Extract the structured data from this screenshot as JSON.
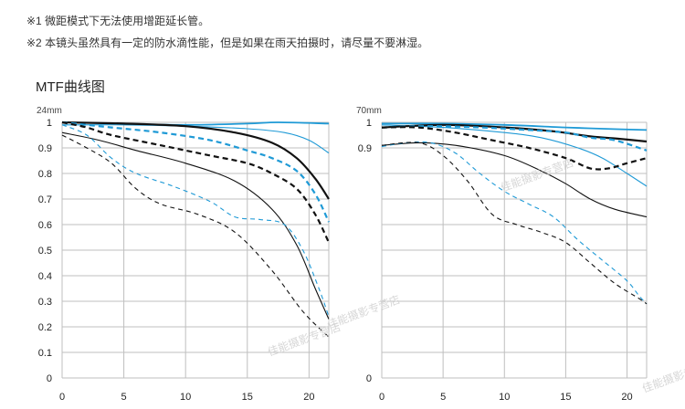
{
  "notes": [
    "※1 微距模式下无法使用增距延长管。",
    "※2 本镜头虽然具有一定的防水滴性能，但是如果在雨天拍摄时，请尽量不要淋湿。"
  ],
  "section_title": "MTF曲线图",
  "watermark": "佳能摄影专营店",
  "colors": {
    "black": "#111111",
    "blue": "#1f9ad6",
    "grid": "#bfbfbf"
  },
  "chart_data": [
    {
      "type": "line",
      "title": "24mm",
      "xlabel": "",
      "ylabel": "",
      "xlim": [
        0,
        21.6
      ],
      "ylim": [
        0,
        1
      ],
      "x_ticks": [
        0,
        5,
        10,
        15,
        20
      ],
      "y_ticks": [
        0,
        0.1,
        0.2,
        0.3,
        0.4,
        0.5,
        0.6,
        0.7,
        0.8,
        0.9,
        1
      ],
      "y_tick_labels": [
        "0",
        "0.1",
        "0.2",
        "0.3",
        "0.4",
        "0.5",
        "0.6",
        "0.7",
        "0.8",
        "0.9",
        "1"
      ],
      "grid": true,
      "series": [
        {
          "color": "blue",
          "style": "solid",
          "width": 1.8,
          "points": [
            [
              0,
              1.0
            ],
            [
              5,
              0.995
            ],
            [
              10,
              0.99
            ],
            [
              15,
              0.995
            ],
            [
              17.5,
              1.0
            ],
            [
              21.6,
              0.995
            ]
          ]
        },
        {
          "color": "blue",
          "style": "solid",
          "width": 1.1,
          "points": [
            [
              0,
              0.99
            ],
            [
              5,
              0.99
            ],
            [
              10,
              0.985
            ],
            [
              15,
              0.975
            ],
            [
              18,
              0.96
            ],
            [
              20,
              0.93
            ],
            [
              21.6,
              0.88
            ]
          ]
        },
        {
          "color": "black",
          "style": "solid",
          "width": 2.2,
          "points": [
            [
              0,
              1.0
            ],
            [
              5,
              0.995
            ],
            [
              10,
              0.985
            ],
            [
              14,
              0.96
            ],
            [
              17,
              0.92
            ],
            [
              19,
              0.86
            ],
            [
              20.5,
              0.78
            ],
            [
              21.6,
              0.7
            ]
          ]
        },
        {
          "color": "black",
          "style": "solid",
          "width": 1.1,
          "points": [
            [
              0,
              0.96
            ],
            [
              3,
              0.93
            ],
            [
              6,
              0.89
            ],
            [
              10,
              0.84
            ],
            [
              14,
              0.77
            ],
            [
              17,
              0.66
            ],
            [
              19,
              0.52
            ],
            [
              20.5,
              0.35
            ],
            [
              21.6,
              0.23
            ]
          ]
        },
        {
          "color": "blue",
          "style": "dashed",
          "width": 2.2,
          "points": [
            [
              0,
              1.0
            ],
            [
              4,
              0.98
            ],
            [
              8,
              0.96
            ],
            [
              12,
              0.93
            ],
            [
              15,
              0.89
            ],
            [
              17,
              0.86
            ],
            [
              19,
              0.81
            ],
            [
              20.5,
              0.72
            ],
            [
              21.6,
              0.61
            ]
          ]
        },
        {
          "color": "black",
          "style": "dashed",
          "width": 2.2,
          "points": [
            [
              0,
              1.0
            ],
            [
              2,
              0.98
            ],
            [
              4,
              0.95
            ],
            [
              8,
              0.91
            ],
            [
              12,
              0.87
            ],
            [
              15,
              0.84
            ],
            [
              17,
              0.8
            ],
            [
              19,
              0.74
            ],
            [
              20.5,
              0.64
            ],
            [
              21.6,
              0.53
            ]
          ]
        },
        {
          "color": "blue",
          "style": "dashed",
          "width": 1.1,
          "points": [
            [
              0,
              0.99
            ],
            [
              2,
              0.95
            ],
            [
              4,
              0.86
            ],
            [
              6,
              0.8
            ],
            [
              9,
              0.75
            ],
            [
              12,
              0.69
            ],
            [
              14,
              0.63
            ],
            [
              16,
              0.62
            ],
            [
              18,
              0.6
            ],
            [
              19.5,
              0.5
            ],
            [
              20.8,
              0.35
            ],
            [
              21.6,
              0.24
            ]
          ]
        },
        {
          "color": "black",
          "style": "dashed",
          "width": 1.1,
          "points": [
            [
              0,
              0.95
            ],
            [
              2,
              0.9
            ],
            [
              4,
              0.84
            ],
            [
              6,
              0.74
            ],
            [
              8,
              0.68
            ],
            [
              11,
              0.64
            ],
            [
              14,
              0.57
            ],
            [
              17,
              0.42
            ],
            [
              19.5,
              0.26
            ],
            [
              21.6,
              0.16
            ]
          ]
        }
      ]
    },
    {
      "type": "line",
      "title": "70mm",
      "xlabel": "",
      "ylabel": "",
      "xlim": [
        0,
        21.6
      ],
      "ylim": [
        0,
        1
      ],
      "x_ticks": [
        0,
        5,
        10,
        15,
        20
      ],
      "y_ticks": [
        0,
        0.1,
        0.2,
        0.3,
        0.4,
        0.5,
        0.6,
        0.7,
        0.8,
        0.9,
        1
      ],
      "y_tick_labels": [
        "0",
        "",
        "",
        "",
        "",
        "",
        "",
        "",
        "",
        "0.9",
        "1"
      ],
      "grid": true,
      "series": [
        {
          "color": "blue",
          "style": "solid",
          "width": 1.8,
          "points": [
            [
              0,
              0.995
            ],
            [
              5,
              0.995
            ],
            [
              10,
              0.99
            ],
            [
              15,
              0.98
            ],
            [
              18,
              0.975
            ],
            [
              21.6,
              0.97
            ]
          ]
        },
        {
          "color": "blue",
          "style": "solid",
          "width": 1.1,
          "points": [
            [
              0,
              0.99
            ],
            [
              5,
              0.98
            ],
            [
              10,
              0.96
            ],
            [
              13,
              0.94
            ],
            [
              16,
              0.9
            ],
            [
              18,
              0.86
            ],
            [
              20,
              0.8
            ],
            [
              21.6,
              0.75
            ]
          ]
        },
        {
          "color": "black",
          "style": "solid",
          "width": 2.2,
          "points": [
            [
              0,
              0.98
            ],
            [
              5,
              0.99
            ],
            [
              10,
              0.98
            ],
            [
              14,
              0.965
            ],
            [
              17,
              0.945
            ],
            [
              19.5,
              0.935
            ],
            [
              21.6,
              0.925
            ]
          ]
        },
        {
          "color": "black",
          "style": "solid",
          "width": 1.1,
          "points": [
            [
              0,
              0.91
            ],
            [
              3,
              0.92
            ],
            [
              6,
              0.91
            ],
            [
              10,
              0.87
            ],
            [
              13,
              0.81
            ],
            [
              15,
              0.76
            ],
            [
              17,
              0.7
            ],
            [
              19,
              0.66
            ],
            [
              21.6,
              0.63
            ]
          ]
        },
        {
          "color": "blue",
          "style": "dashed",
          "width": 2.2,
          "points": [
            [
              0,
              0.98
            ],
            [
              4,
              0.985
            ],
            [
              8,
              0.98
            ],
            [
              12,
              0.97
            ],
            [
              15,
              0.96
            ],
            [
              17,
              0.94
            ],
            [
              19,
              0.93
            ],
            [
              21.6,
              0.89
            ]
          ]
        },
        {
          "color": "black",
          "style": "dashed",
          "width": 2.2,
          "points": [
            [
              0,
              0.98
            ],
            [
              3,
              0.98
            ],
            [
              6,
              0.96
            ],
            [
              9,
              0.93
            ],
            [
              12,
              0.9
            ],
            [
              15,
              0.86
            ],
            [
              17,
              0.82
            ],
            [
              18.5,
              0.82
            ],
            [
              20,
              0.84
            ],
            [
              21.6,
              0.86
            ]
          ]
        },
        {
          "color": "blue",
          "style": "dashed",
          "width": 1.1,
          "points": [
            [
              0,
              0.905
            ],
            [
              2,
              0.92
            ],
            [
              4,
              0.92
            ],
            [
              6,
              0.88
            ],
            [
              8,
              0.8
            ],
            [
              10,
              0.73
            ],
            [
              12,
              0.68
            ],
            [
              14,
              0.63
            ],
            [
              16,
              0.54
            ],
            [
              18,
              0.46
            ],
            [
              20,
              0.38
            ],
            [
              21,
              0.32
            ],
            [
              21.6,
              0.29
            ]
          ]
        },
        {
          "color": "black",
          "style": "dashed",
          "width": 1.1,
          "points": [
            [
              0,
              0.91
            ],
            [
              3,
              0.92
            ],
            [
              5,
              0.87
            ],
            [
              7,
              0.77
            ],
            [
              9,
              0.64
            ],
            [
              11,
              0.6
            ],
            [
              13,
              0.57
            ],
            [
              15,
              0.53
            ],
            [
              17,
              0.45
            ],
            [
              19,
              0.37
            ],
            [
              21,
              0.31
            ],
            [
              21.6,
              0.29
            ]
          ]
        }
      ]
    }
  ]
}
